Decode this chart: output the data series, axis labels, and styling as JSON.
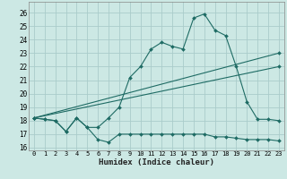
{
  "xlabel": "Humidex (Indice chaleur)",
  "bg_color": "#cce8e4",
  "grid_color": "#aaccca",
  "line_color": "#1e6b64",
  "xlim": [
    -0.5,
    23.5
  ],
  "ylim": [
    15.8,
    26.8
  ],
  "xticks": [
    0,
    1,
    2,
    3,
    4,
    5,
    6,
    7,
    8,
    9,
    10,
    11,
    12,
    13,
    14,
    15,
    16,
    17,
    18,
    19,
    20,
    21,
    22,
    23
  ],
  "yticks": [
    16,
    17,
    18,
    19,
    20,
    21,
    22,
    23,
    24,
    25,
    26
  ],
  "series_low_x": [
    0,
    1,
    2,
    3,
    4,
    5,
    6,
    7,
    8,
    9,
    10,
    11,
    12,
    13,
    14,
    15,
    16,
    17,
    18,
    19,
    20,
    21,
    22,
    23
  ],
  "series_low_y": [
    18.2,
    18.1,
    18.0,
    17.2,
    18.2,
    17.5,
    16.6,
    16.4,
    17.0,
    17.0,
    17.0,
    17.0,
    17.0,
    17.0,
    17.0,
    17.0,
    17.0,
    16.8,
    16.8,
    16.7,
    16.6,
    16.6,
    16.6,
    16.5
  ],
  "series_high_x": [
    0,
    1,
    2,
    3,
    4,
    5,
    6,
    7,
    8,
    9,
    10,
    11,
    12,
    13,
    14,
    15,
    16,
    17,
    18,
    19,
    20,
    21,
    22,
    23
  ],
  "series_high_y": [
    18.2,
    18.1,
    18.0,
    17.2,
    18.2,
    17.5,
    17.5,
    18.2,
    19.0,
    21.2,
    22.0,
    23.3,
    23.8,
    23.5,
    23.3,
    25.6,
    25.9,
    24.7,
    24.3,
    22.0,
    19.4,
    18.1,
    18.1,
    18.0
  ],
  "trend1_x": [
    0,
    23
  ],
  "trend1_y": [
    18.2,
    23.0
  ],
  "trend2_x": [
    0,
    23
  ],
  "trend2_y": [
    18.2,
    22.0
  ]
}
